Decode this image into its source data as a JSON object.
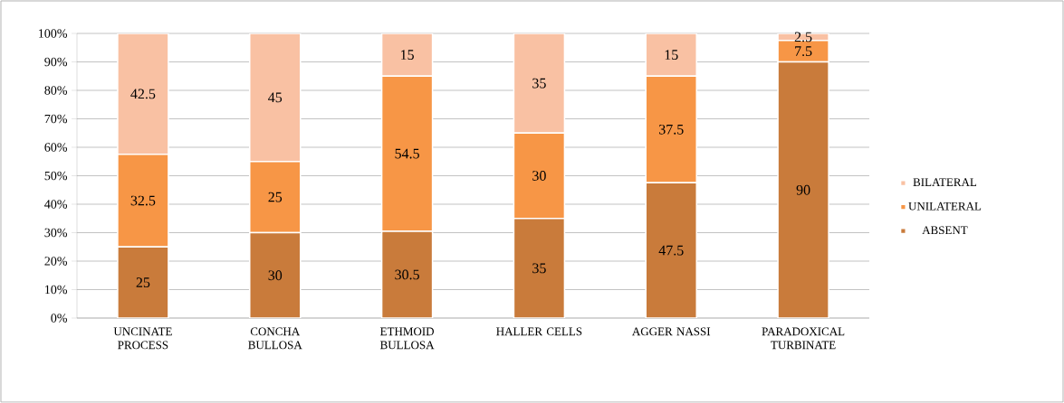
{
  "chart_data": {
    "type": "bar",
    "stacked": true,
    "categories": [
      "UNCINATE PROCESS",
      "CONCHA BULLOSA",
      "ETHMOID BULLOSA",
      "HALLER CELLS",
      "AGGER NASSI",
      "PARADOXICAL TURBINATE"
    ],
    "series": [
      {
        "name": "ABSENT",
        "color": "#c97b3b",
        "values": [
          25,
          30,
          30.5,
          35,
          47.5,
          90
        ]
      },
      {
        "name": "UNILATERAL",
        "color": "#f79646",
        "values": [
          32.5,
          25,
          54.5,
          30,
          37.5,
          7.5
        ]
      },
      {
        "name": "BILATERAL",
        "color": "#f9c1a3",
        "values": [
          42.5,
          45,
          15,
          35,
          15,
          2.5
        ]
      }
    ],
    "ylim": [
      0,
      100
    ],
    "yticks": [
      {
        "value": 0,
        "label": "0%"
      },
      {
        "value": 10,
        "label": "10%"
      },
      {
        "value": 20,
        "label": "20%"
      },
      {
        "value": 30,
        "label": "30%"
      },
      {
        "value": 40,
        "label": "40%"
      },
      {
        "value": 50,
        "label": "50%"
      },
      {
        "value": 60,
        "label": "60%"
      },
      {
        "value": 70,
        "label": "70%"
      },
      {
        "value": 80,
        "label": "80%"
      },
      {
        "value": 90,
        "label": "90%"
      },
      {
        "value": 100,
        "label": "100%"
      }
    ],
    "grid": "y",
    "legend": "right",
    "data_labels": true
  }
}
